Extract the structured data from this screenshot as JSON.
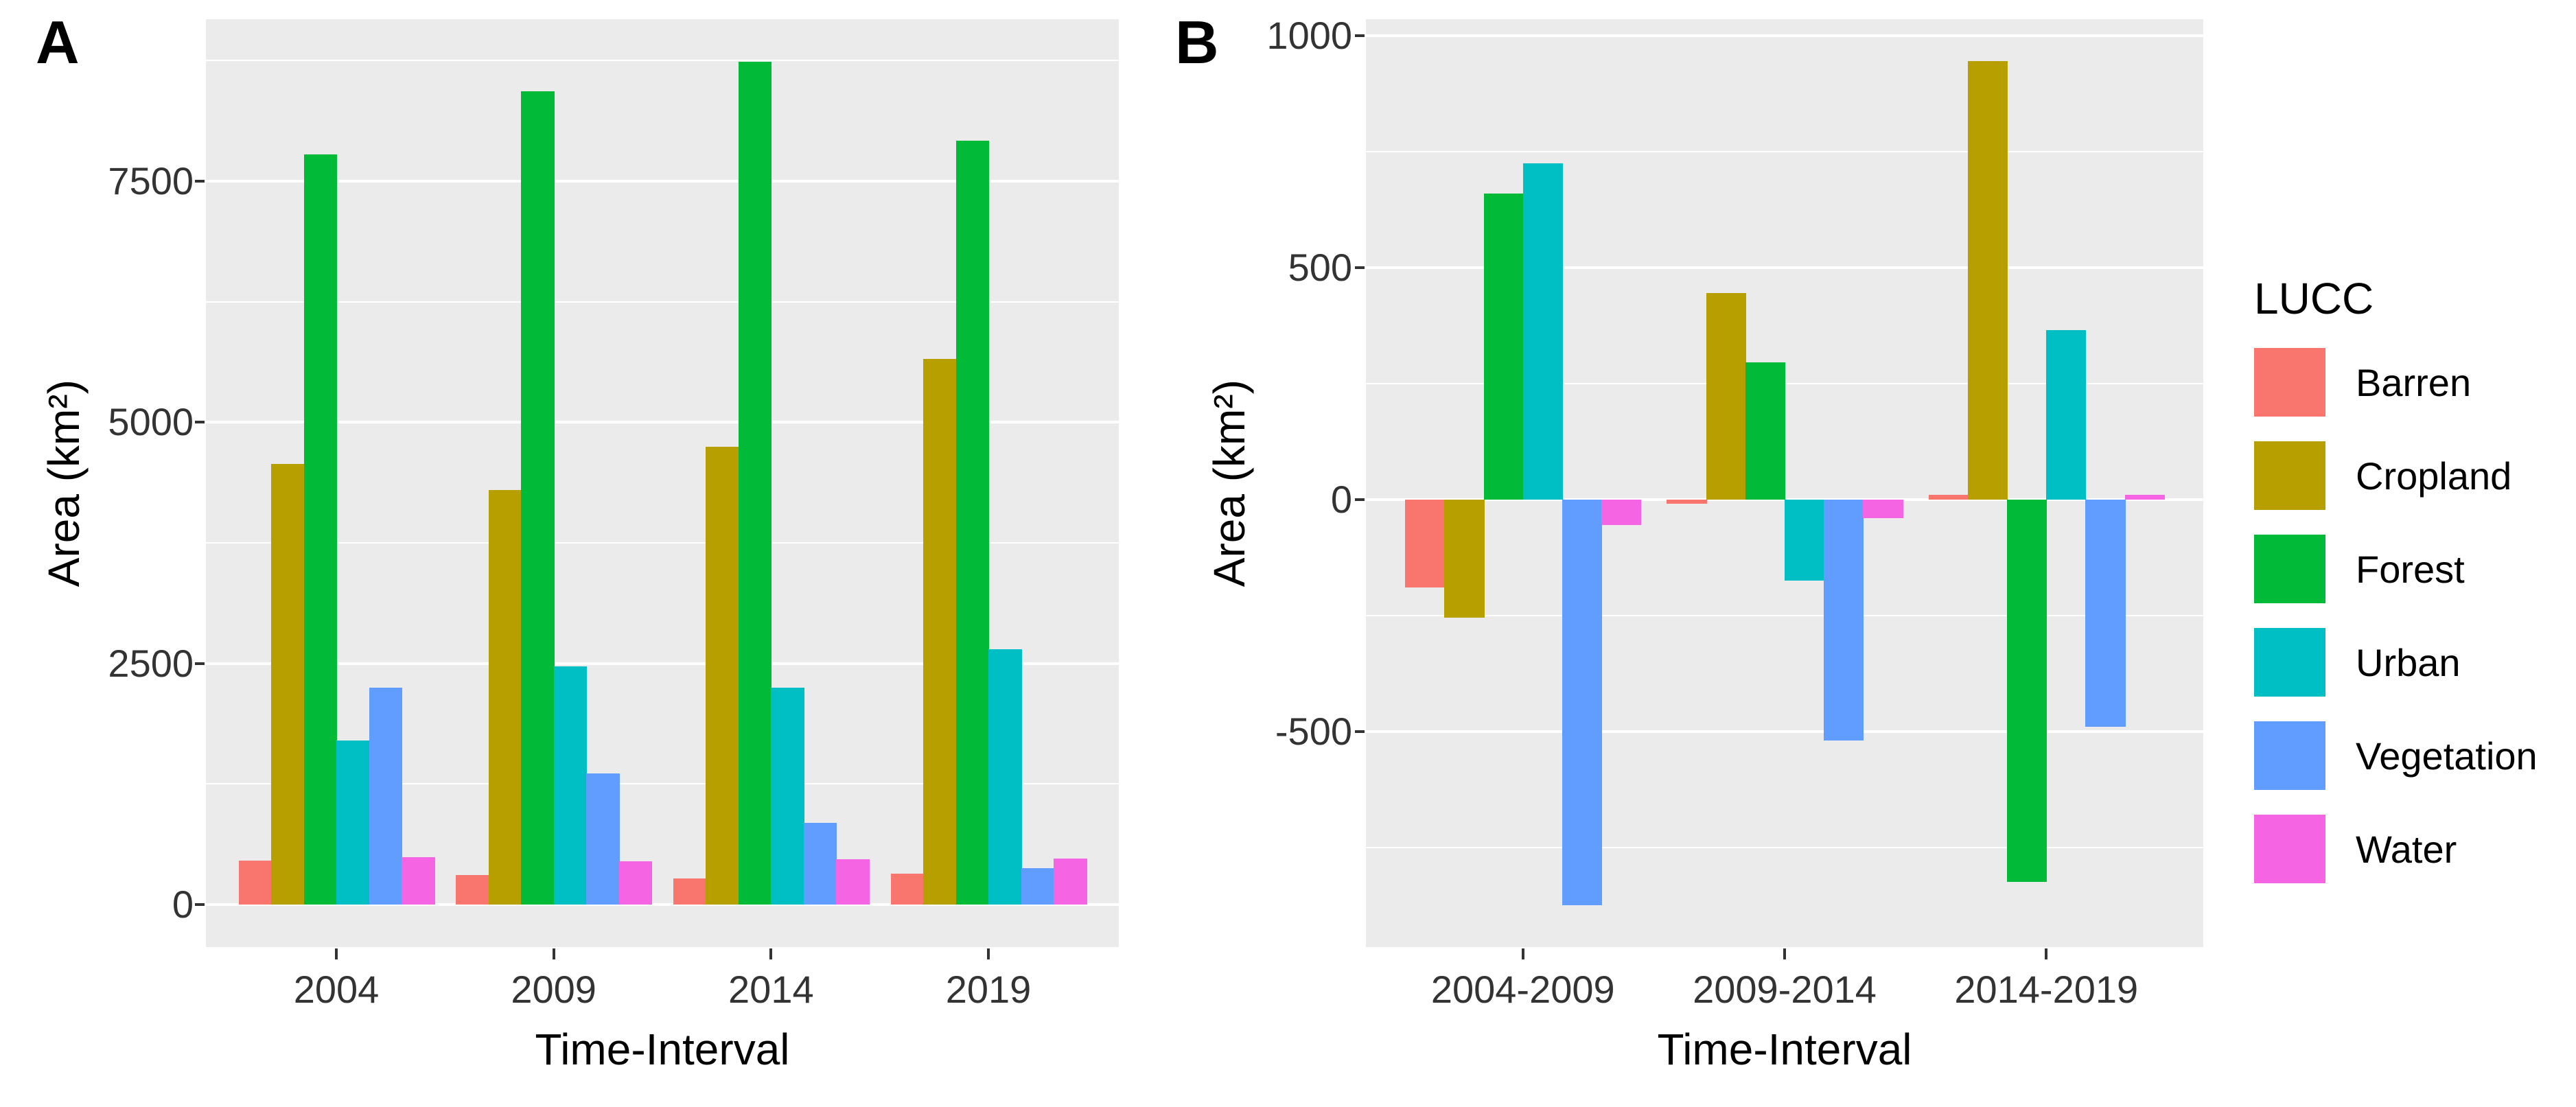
{
  "figure": {
    "panels": [
      {
        "label": "A"
      },
      {
        "label": "B"
      }
    ]
  },
  "legend": {
    "title": "LUCC",
    "entries": [
      {
        "label": "Barren",
        "color": "#F8766D"
      },
      {
        "label": "Cropland",
        "color": "#B79F00"
      },
      {
        "label": "Forest",
        "color": "#00BA38"
      },
      {
        "label": "Urban",
        "color": "#00BFC4"
      },
      {
        "label": "Vegetation",
        "color": "#619CFF"
      },
      {
        "label": "Water",
        "color": "#F564E2"
      }
    ]
  },
  "colors": {
    "panel_background": "#EBEBEB",
    "gridline": "#FFFFFF",
    "tick_text": "#333333",
    "title_text": "#000000"
  },
  "chart_data": [
    {
      "id": "A",
      "type": "bar",
      "title": "A",
      "categories": [
        "2004",
        "2009",
        "2014",
        "2019"
      ],
      "series": [
        {
          "name": "Barren",
          "color": "#F8766D",
          "values": [
            460,
            310,
            270,
            320
          ]
        },
        {
          "name": "Cropland",
          "color": "#B79F00",
          "values": [
            4570,
            4300,
            4750,
            5660
          ]
        },
        {
          "name": "Forest",
          "color": "#00BA38",
          "values": [
            7780,
            8430,
            8740,
            7920
          ]
        },
        {
          "name": "Urban",
          "color": "#00BFC4",
          "values": [
            1700,
            2470,
            2250,
            2650
          ]
        },
        {
          "name": "Vegetation",
          "color": "#619CFF",
          "values": [
            2250,
            1360,
            850,
            380
          ]
        },
        {
          "name": "Water",
          "color": "#F564E2",
          "values": [
            490,
            450,
            470,
            480
          ]
        }
      ],
      "xlabel": "Time-Interval",
      "ylabel": "Area (km²)",
      "ylim": [
        -440,
        9180
      ],
      "yticks": [
        0,
        2500,
        5000,
        7500
      ],
      "yticks_minor": [
        1250,
        3750,
        6250,
        8750
      ],
      "grid": true,
      "legend_position": "right",
      "bar_mode": "grouped"
    },
    {
      "id": "B",
      "type": "bar",
      "title": "B",
      "categories": [
        "2004-2009",
        "2009-2014",
        "2014-2019"
      ],
      "series": [
        {
          "name": "Barren",
          "color": "#F8766D",
          "values": [
            -190,
            -10,
            10
          ]
        },
        {
          "name": "Cropland",
          "color": "#B79F00",
          "values": [
            -255,
            445,
            945
          ]
        },
        {
          "name": "Forest",
          "color": "#00BA38",
          "values": [
            660,
            295,
            -825
          ]
        },
        {
          "name": "Urban",
          "color": "#00BFC4",
          "values": [
            725,
            -175,
            365
          ]
        },
        {
          "name": "Vegetation",
          "color": "#619CFF",
          "values": [
            -875,
            -520,
            -490
          ]
        },
        {
          "name": "Water",
          "color": "#F564E2",
          "values": [
            -55,
            -40,
            10
          ]
        }
      ],
      "xlabel": "Time-Interval",
      "ylabel": "Area (km²)",
      "ylim": [
        -965,
        1035
      ],
      "yticks": [
        -500,
        0,
        500,
        1000
      ],
      "yticks_minor": [
        -750,
        -250,
        250,
        750
      ],
      "grid": true,
      "legend_position": "right",
      "bar_mode": "grouped"
    }
  ]
}
